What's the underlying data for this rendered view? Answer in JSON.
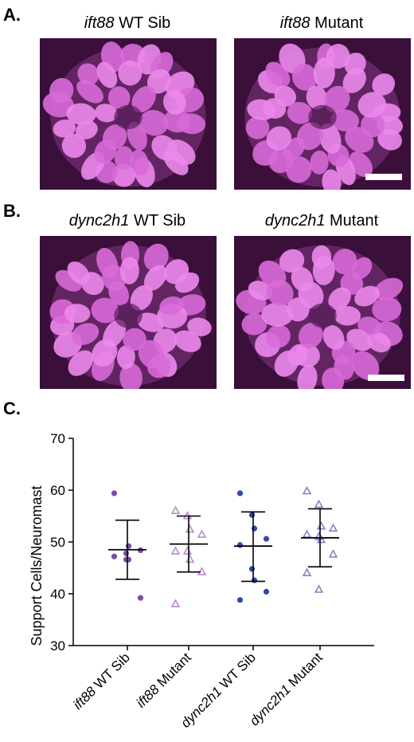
{
  "panels": {
    "a": {
      "letter": "A.",
      "left_title": {
        "gene": "ift88",
        "rest": " WT Sib"
      },
      "right_title": {
        "gene": "ift88",
        "rest": " Mutant"
      }
    },
    "b": {
      "letter": "B.",
      "left_title": {
        "gene": "dync2h1",
        "rest": " WT Sib"
      },
      "right_title": {
        "gene": "dync2h1",
        "rest": " Mutant"
      }
    },
    "c": {
      "letter": "C."
    }
  },
  "colors": {
    "magenta_bg": "#3a0f3a",
    "cell": "#d86ad8",
    "cell_bright": "#ec88ec"
  },
  "chart_data": {
    "type": "scatter",
    "ylabel": "Support Cells/Neuromast",
    "ylim": [
      30,
      70
    ],
    "yticks": [
      30,
      40,
      50,
      60,
      70
    ],
    "categories": [
      {
        "gene": "ift88",
        "rest": " WT Sib"
      },
      {
        "gene": "ift88",
        "rest": " Mutant"
      },
      {
        "gene": "dync2h1",
        "rest": " WT Sib"
      },
      {
        "gene": "dync2h1",
        "rest": " Mutant"
      }
    ],
    "series": [
      {
        "marker": "filled-circle",
        "color": "#7b4ea3",
        "values": [
          59.4,
          47.8,
          49.2,
          48.4,
          47.2,
          46.6,
          46.6,
          39.2
        ],
        "mean": 48.5,
        "sd_low": 42.8,
        "sd_high": 54.2
      },
      {
        "marker": "open-triangle",
        "color": "#b88ad0",
        "values": [
          56.0,
          55.0,
          52.4,
          51.4,
          48.2,
          48.2,
          46.6,
          44.2,
          38.0
        ],
        "mean": 49.6,
        "sd_low": 44.2,
        "sd_high": 55.0
      },
      {
        "marker": "filled-circle",
        "color": "#2f4aa8",
        "values": [
          59.4,
          55.2,
          52.6,
          50.6,
          49.4,
          44.8,
          42.6,
          40.4,
          38.8
        ],
        "mean": 49.2,
        "sd_low": 42.4,
        "sd_high": 55.8
      },
      {
        "marker": "open-triangle",
        "color": "#7f85c8",
        "values": [
          59.8,
          57.2,
          53.0,
          52.6,
          51.4,
          51.0,
          50.4,
          47.6,
          44.0,
          40.8
        ],
        "mean": 50.8,
        "sd_low": 45.2,
        "sd_high": 56.4
      }
    ]
  }
}
